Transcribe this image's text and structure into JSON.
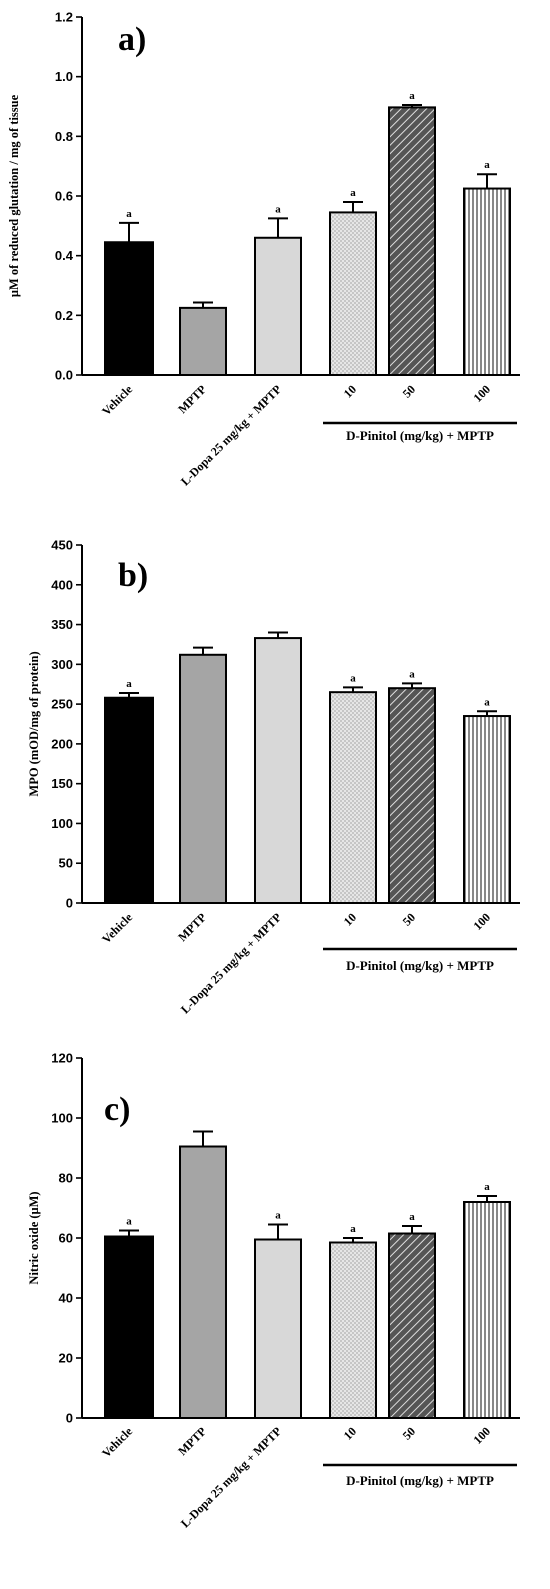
{
  "chart_data": [
    {
      "type": "bar",
      "panel": "a)",
      "ylabel": "μM of reduced glutation / mg of tissue",
      "ylim": [
        0,
        1.2
      ],
      "yticks": [
        "0.0",
        "0.2",
        "0.4",
        "0.6",
        "0.8",
        "1.0",
        "1.2"
      ],
      "categories": [
        "Vehicle",
        "MPTP",
        "L-Dopa 25 mg/kg + MPTP",
        "10",
        "50",
        "100"
      ],
      "values": [
        0.445,
        0.225,
        0.46,
        0.545,
        0.897,
        0.625
      ],
      "errors": [
        0.065,
        0.018,
        0.065,
        0.035,
        0.008,
        0.048
      ],
      "significance": [
        "a",
        "",
        "a",
        "a",
        "a",
        "a"
      ],
      "group_label": "D-Pinitol (mg/kg) + MPTP"
    },
    {
      "type": "bar",
      "panel": "b)",
      "ylabel": "MPO (mOD/mg of protein)",
      "ylim": [
        0,
        450
      ],
      "yticks": [
        "0",
        "50",
        "100",
        "150",
        "200",
        "250",
        "300",
        "350",
        "400",
        "450"
      ],
      "categories": [
        "Vehicle",
        "MPTP",
        "L-Dopa 25 mg/kg + MPTP",
        "10",
        "50",
        "100"
      ],
      "values": [
        258,
        312,
        333,
        265,
        270,
        235
      ],
      "errors": [
        6,
        9,
        7,
        6,
        6,
        6
      ],
      "significance": [
        "a",
        "",
        "",
        "a",
        "a",
        "a"
      ],
      "group_label": "D-Pinitol (mg/kg) + MPTP"
    },
    {
      "type": "bar",
      "panel": "c)",
      "ylabel": "Nitric oxide (μM)",
      "ylim": [
        0,
        120
      ],
      "yticks": [
        "0",
        "20",
        "40",
        "60",
        "80",
        "100",
        "120"
      ],
      "categories": [
        "Vehicle",
        "MPTP",
        "L-Dopa 25 mg/kg + MPTP",
        "10",
        "50",
        "100"
      ],
      "values": [
        60.5,
        90.5,
        59.5,
        58.5,
        61.5,
        72
      ],
      "errors": [
        2,
        5,
        5,
        1.5,
        2.5,
        2
      ],
      "significance": [
        "a",
        "",
        "a",
        "a",
        "a",
        "a"
      ],
      "group_label": "D-Pinitol (mg/kg) + MPTP"
    }
  ]
}
